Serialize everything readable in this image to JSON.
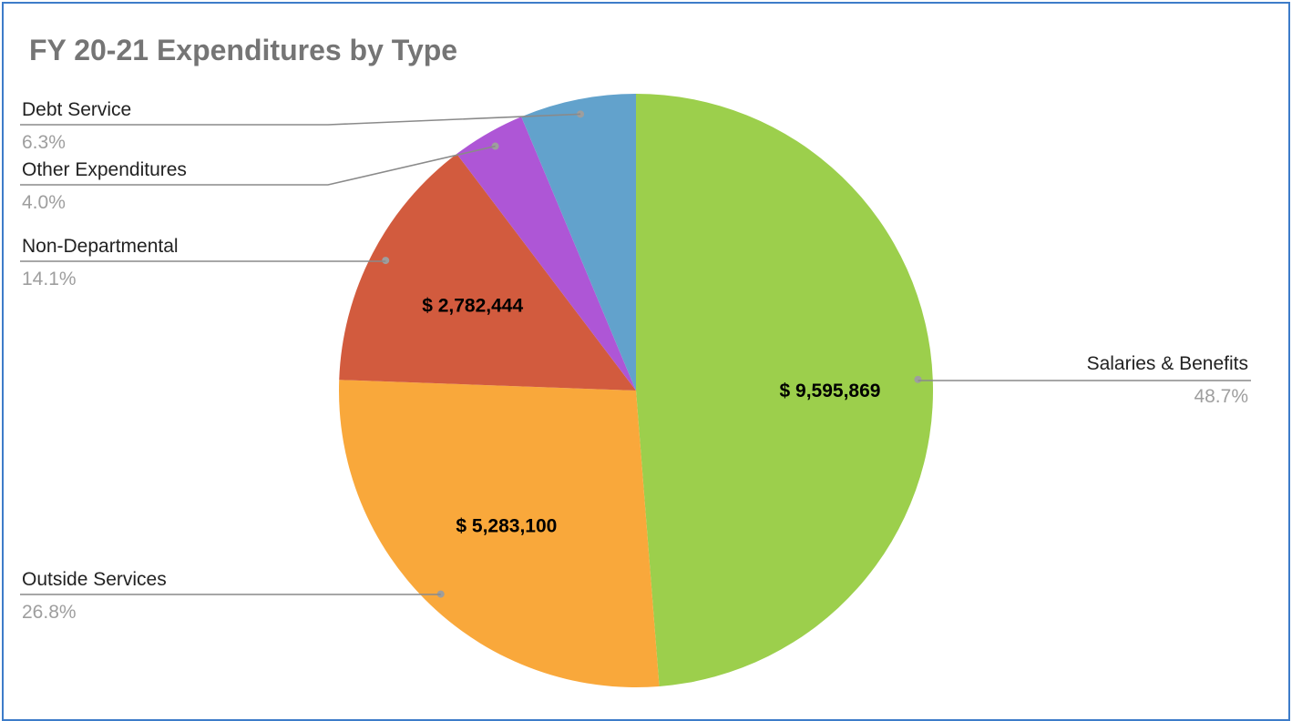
{
  "chart_data": {
    "type": "pie",
    "title": "FY 20-21 Expenditures by Type",
    "slices": [
      {
        "name": "Salaries & Benefits",
        "percent": 48.7,
        "percent_label": "48.7%",
        "value_label": "$ 9,595,869",
        "color": "#9ccf4c"
      },
      {
        "name": "Outside Services",
        "percent": 26.8,
        "percent_label": "26.8%",
        "value_label": "$ 5,283,100",
        "color": "#f9a83b"
      },
      {
        "name": "Non-Departmental",
        "percent": 14.1,
        "percent_label": "14.1%",
        "value_label": "$ 2,782,444",
        "color": "#d25b3e"
      },
      {
        "name": "Other Expenditures",
        "percent": 4.0,
        "percent_label": "4.0%",
        "value_label": "",
        "color": "#ae56d6"
      },
      {
        "name": "Debt Service",
        "percent": 6.3,
        "percent_label": "6.3%",
        "value_label": "",
        "color": "#62a2cc"
      }
    ],
    "legend": "callout labels"
  }
}
